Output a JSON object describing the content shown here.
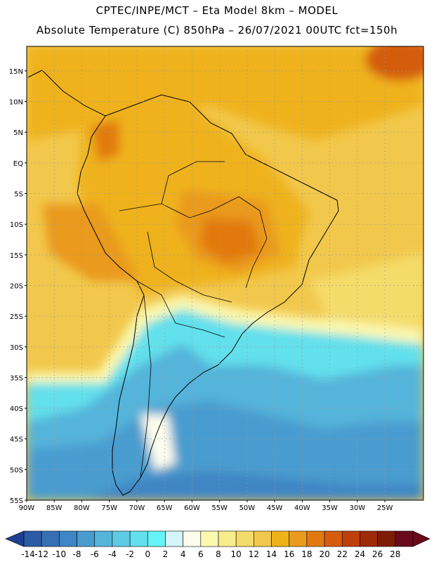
{
  "title_line1": "CPTEC/INPE/MCT –  Eta Model 8km – MODEL",
  "title_line2": "Absolute Temperature (C) 850hPa – 26/07/2021 00UTC fct=150h",
  "map": {
    "lon_range": [
      -90,
      -18
    ],
    "lat_range": [
      -55,
      19
    ],
    "lat_ticks": [
      {
        "v": 15,
        "label": "15N"
      },
      {
        "v": 10,
        "label": "10N"
      },
      {
        "v": 5,
        "label": "5N"
      },
      {
        "v": 0,
        "label": "EQ"
      },
      {
        "v": -5,
        "label": "5S"
      },
      {
        "v": -10,
        "label": "10S"
      },
      {
        "v": -15,
        "label": "15S"
      },
      {
        "v": -20,
        "label": "20S"
      },
      {
        "v": -25,
        "label": "25S"
      },
      {
        "v": -30,
        "label": "30S"
      },
      {
        "v": -35,
        "label": "35S"
      },
      {
        "v": -40,
        "label": "40S"
      },
      {
        "v": -45,
        "label": "45S"
      },
      {
        "v": -50,
        "label": "50S"
      },
      {
        "v": -55,
        "label": "55S"
      }
    ],
    "lon_ticks": [
      {
        "v": -90,
        "label": "90W"
      },
      {
        "v": -85,
        "label": "85W"
      },
      {
        "v": -80,
        "label": "80W"
      },
      {
        "v": -75,
        "label": "75W"
      },
      {
        "v": -70,
        "label": "70W"
      },
      {
        "v": -65,
        "label": "65W"
      },
      {
        "v": -60,
        "label": "60W"
      },
      {
        "v": -55,
        "label": "55W"
      },
      {
        "v": -50,
        "label": "50W"
      },
      {
        "v": -45,
        "label": "45W"
      },
      {
        "v": -40,
        "label": "40W"
      },
      {
        "v": -35,
        "label": "35W"
      },
      {
        "v": -30,
        "label": "30W"
      },
      {
        "v": -25,
        "label": "25W"
      }
    ]
  },
  "colorbar": {
    "labels": [
      "-14",
      "-12",
      "-10",
      "-8",
      "-6",
      "-4",
      "-2",
      "0",
      "2",
      "4",
      "6",
      "8",
      "10",
      "12",
      "14",
      "16",
      "18",
      "20",
      "22",
      "24",
      "26",
      "28"
    ],
    "colors": [
      "#1e3f91",
      "#2a5aa5",
      "#3570b5",
      "#3f86c4",
      "#4a9ccf",
      "#54b4da",
      "#5ecbe4",
      "#62e0ec",
      "#66f3f5",
      "#d4f6fb",
      "#fdfdee",
      "#fbf8b0",
      "#f8ec8c",
      "#f4dc6a",
      "#f2c84c",
      "#efb21a",
      "#ea9a1c",
      "#e27910",
      "#d45c0c",
      "#bf3f0a",
      "#9e2a08",
      "#7f1c08",
      "#6a0a1c"
    ]
  }
}
